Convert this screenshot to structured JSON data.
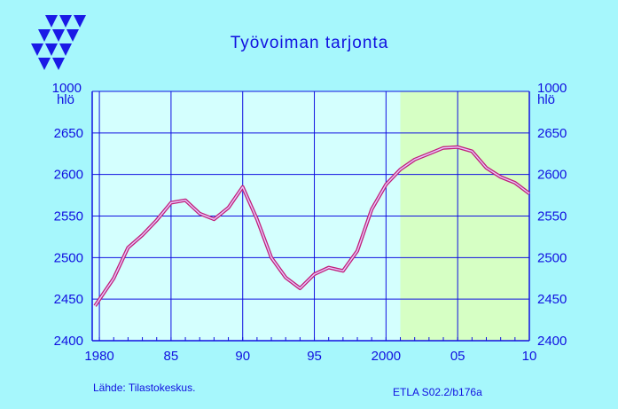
{
  "chart_data": {
    "type": "line",
    "title": "Työvoiman tarjonta",
    "ylabel_top": "1000",
    "ylabel_unit": "hlö",
    "ylim": [
      2400,
      2700
    ],
    "yticks": [
      "2400",
      "2450",
      "2500",
      "2550",
      "2600",
      "2650"
    ],
    "xlim": [
      1979.5,
      2010
    ],
    "xticks": [
      {
        "value": 1980,
        "label": "1980"
      },
      {
        "value": 1985,
        "label": "85"
      },
      {
        "value": 1990,
        "label": "90"
      },
      {
        "value": 1995,
        "label": "95"
      },
      {
        "value": 2000,
        "label": "2000"
      },
      {
        "value": 2005,
        "label": "05"
      },
      {
        "value": 2010,
        "label": "10"
      }
    ],
    "forecast_shade": [
      2001,
      2010
    ],
    "series": [
      {
        "x": [
          1979.7,
          1981,
          1982,
          1983,
          1984,
          1985,
          1986,
          1987,
          1988,
          1989,
          1990,
          1991,
          1992,
          1993,
          1994,
          1995,
          1996,
          1997,
          1998,
          1999,
          2000,
          2001,
          2002,
          2003,
          2004,
          2005,
          2006,
          2007,
          2008,
          2009,
          2010
        ],
        "values": [
          2442,
          2475,
          2512,
          2527,
          2545,
          2566,
          2569,
          2553,
          2546,
          2560,
          2585,
          2546,
          2500,
          2476,
          2463,
          2480,
          2488,
          2484,
          2508,
          2558,
          2588,
          2606,
          2618,
          2625,
          2632,
          2633,
          2628,
          2608,
          2597,
          2590,
          2577
        ]
      }
    ],
    "colors": {
      "background": "#a6f7fc",
      "plot": "#d4fffe",
      "forecast": "#d6ffc4",
      "axis": "#1010e0",
      "line_outer": "#c0207a",
      "line_inner": "#e8c8ff"
    }
  },
  "footer": {
    "source": "Lähde:   Tilastokeskus.",
    "code": "ETLA S02.2/b176a"
  },
  "logo": "etla-logo-icon"
}
